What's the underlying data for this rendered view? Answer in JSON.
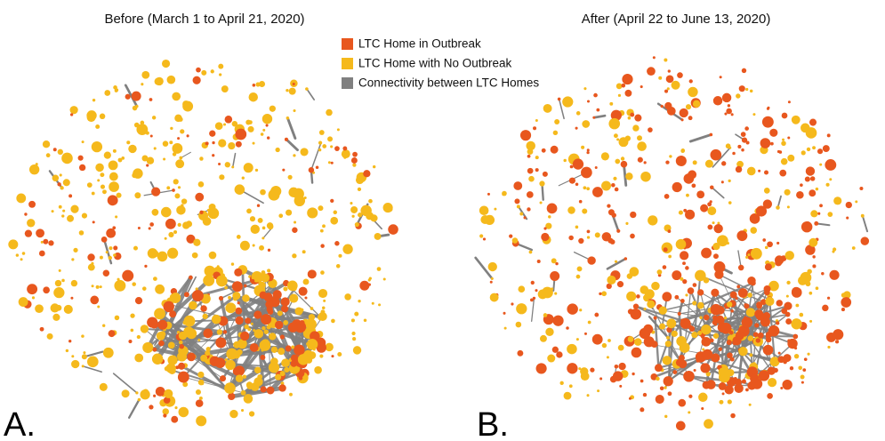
{
  "panels": [
    {
      "title": "Before (March 1 to April 21, 2020)",
      "label": "A."
    },
    {
      "title": "After (April 22 to June 13, 2020)",
      "label": "B."
    }
  ],
  "legend": [
    {
      "name": "LTC Home in Outbreak",
      "color": "#e8571e"
    },
    {
      "name": "LTC Home with No Outbreak",
      "color": "#f5b91c"
    },
    {
      "name": "Connectivity between LTC Homes",
      "color": "#808080"
    }
  ]
}
